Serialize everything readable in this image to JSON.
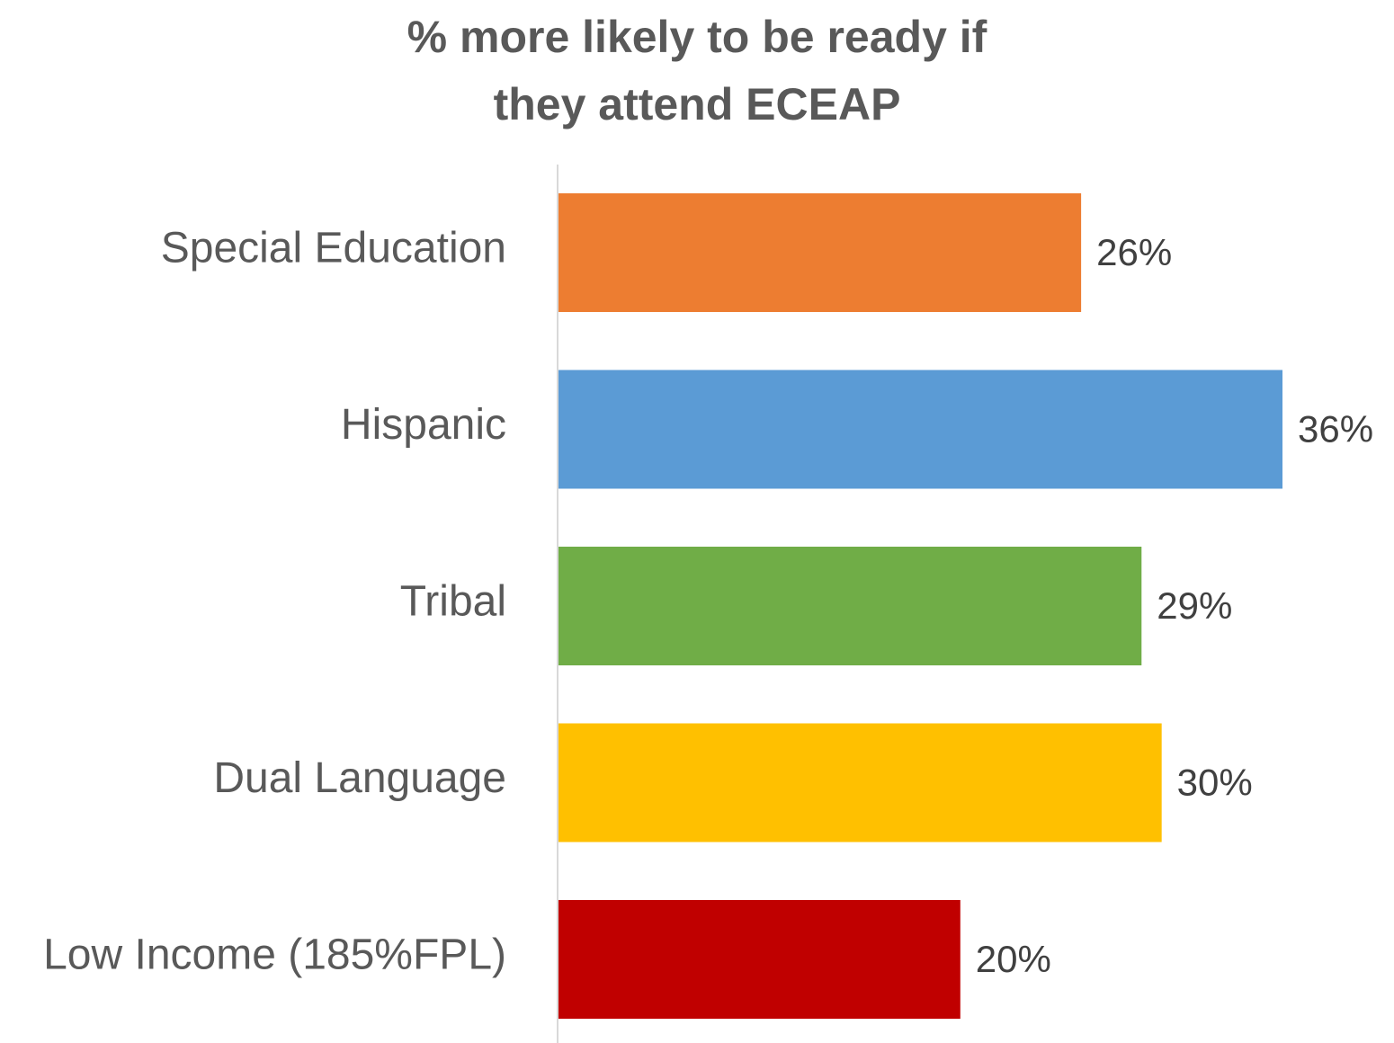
{
  "chart_data": {
    "type": "bar",
    "orientation": "horizontal",
    "title_lines": [
      "% more likely to be ready if",
      "they attend ECEAP"
    ],
    "categories": [
      "Special Education",
      "Hispanic",
      "Tribal",
      "Dual Language",
      "Low Income (185%FPL)"
    ],
    "values": [
      26,
      36,
      29,
      30,
      20
    ],
    "value_labels": [
      "26%",
      "36%",
      "29%",
      "30%",
      "20%"
    ],
    "colors": [
      "#ED7D31",
      "#5B9BD5",
      "#70AD47",
      "#FFC000",
      "#C00000"
    ],
    "xlim": [
      0,
      36
    ],
    "gridlines": false,
    "legend": "none"
  }
}
